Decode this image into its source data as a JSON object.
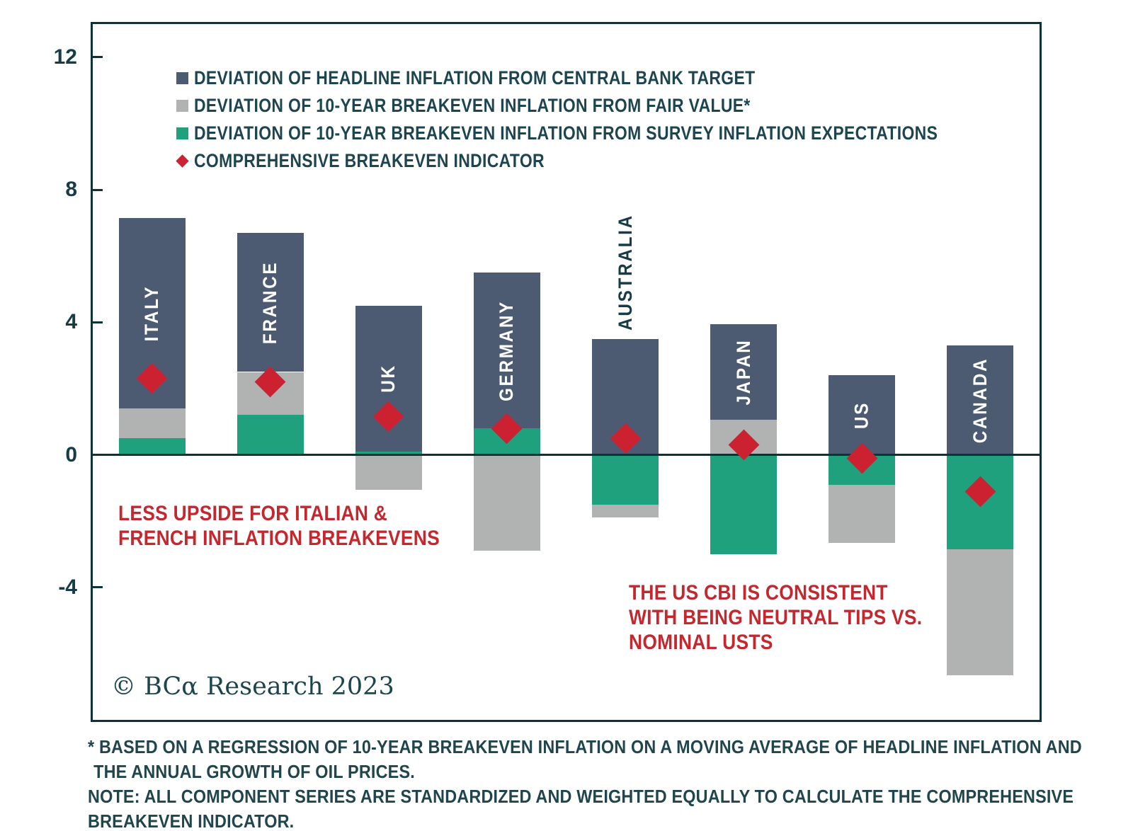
{
  "chart_data": {
    "type": "bar",
    "stacked": true,
    "title": "",
    "categories": [
      "ITALY",
      "FRANCE",
      "UK",
      "GERMANY",
      "AUSTRALIA",
      "JAPAN",
      "US",
      "CANADA"
    ],
    "series": [
      {
        "key": "headline",
        "name": "DEVIATION OF HEADLINE INFLATION FROM CENTRAL BANK TARGET",
        "color": "#4d5b72",
        "values": [
          5.75,
          4.2,
          4.4,
          4.7,
          3.5,
          2.9,
          2.4,
          3.3
        ]
      },
      {
        "key": "fair_value",
        "name": "DEVIATION OF 10-YEAR BREAKEVEN INFLATION FROM FAIR VALUE*",
        "color": "#b1b2b2",
        "values": [
          0.9,
          1.3,
          -1.05,
          -2.9,
          -0.4,
          1.05,
          -1.75,
          -3.8
        ]
      },
      {
        "key": "survey",
        "name": "DEVIATION OF 10-YEAR BREAKEVEN INFLATION FROM SURVEY INFLATION EXPECTATIONS",
        "color": "#1ea17c",
        "values": [
          0.5,
          1.2,
          0.1,
          0.8,
          -1.5,
          -3.0,
          -0.9,
          -2.85
        ]
      }
    ],
    "marker_series": {
      "key": "cbi",
      "name": "COMPREHENSIVE BREAKEVEN INDICATOR",
      "shape": "diamond",
      "color": "#cc2130",
      "values": [
        2.3,
        2.2,
        1.15,
        0.8,
        0.5,
        0.3,
        -0.1,
        -1.1
      ]
    },
    "stack_order_positive": [
      "survey",
      "fair_value",
      "headline"
    ],
    "stack_order_negative": [
      "survey",
      "fair_value"
    ],
    "ylim": [
      -8,
      13
    ],
    "yticks": [
      12,
      8,
      4,
      0,
      -4
    ],
    "grid": false,
    "legend_position": "top-left-inside",
    "bar_label_placement": [
      "inside",
      "inside",
      "inside",
      "inside",
      "above",
      "inside",
      "inside",
      "inside"
    ],
    "annotations": [
      {
        "lines": [
          "LESS UPSIDE FOR ITALIAN &",
          "FRENCH INFLATION BREAKEVENS"
        ],
        "color": "#c4282e",
        "x": 167,
        "y": 708
      },
      {
        "lines": [
          "THE US CBI IS CONSISTENT",
          "WITH BEING NEUTRAL TIPS VS.",
          "NOMINAL USTS"
        ],
        "color": "#c4282e",
        "x": 888,
        "y": 820
      }
    ],
    "source_note": "© BCα Research 2023"
  },
  "footnotes": {
    "line1": "* BASED ON A REGRESSION OF 10-YEAR BREAKEVEN INFLATION ON A MOVING AVERAGE OF HEADLINE INFLATION AND",
    "line2": "THE ANNUAL GROWTH OF OIL PRICES.",
    "line3": "NOTE: ALL COMPONENT SERIES ARE STANDARDIZED AND WEIGHTED EQUALLY TO CALCULATE THE COMPREHENSIVE",
    "line4": "BREAKEVEN INDICATOR."
  },
  "colors": {
    "frame": "#0d3337",
    "tick_label": "#173c46",
    "legend_text": "#1d4550",
    "footnote_text": "#20454c",
    "annotation_red": "#c4282e",
    "marker_red": "#cc2130",
    "bar_navy": "#4d5b72",
    "bar_gray": "#b1b2b2",
    "bar_green": "#1ea17c",
    "background": "#ffffff"
  }
}
